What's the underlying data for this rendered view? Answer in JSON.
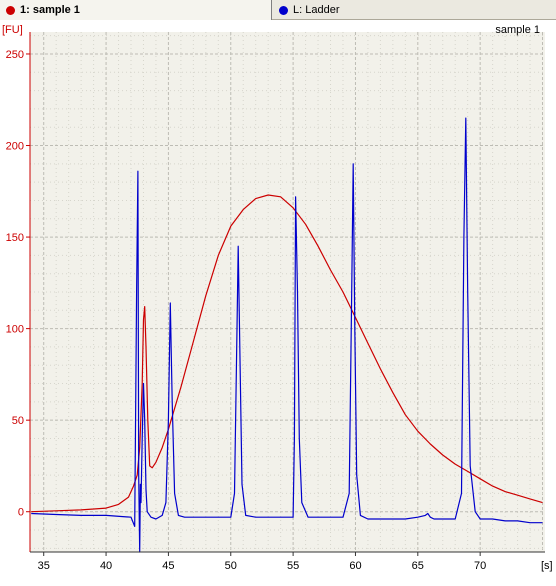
{
  "tabs": [
    {
      "label": "1: sample 1",
      "color": "#cc0000",
      "active": true
    },
    {
      "label": "L: Ladder",
      "color": "#0000cc",
      "active": false
    }
  ],
  "chart_data": {
    "type": "line",
    "title": "sample 1",
    "ylabel": "[FU]",
    "xlabel": "[s]",
    "xlim": [
      33.9,
      75.2
    ],
    "ylim": [
      -22,
      262
    ],
    "x_ticks": [
      35,
      40,
      45,
      50,
      55,
      60,
      65,
      70
    ],
    "y_ticks": [
      0,
      50,
      100,
      150,
      200,
      250
    ],
    "grid": true,
    "background": "#f2f1ea",
    "axis_color": "#cc0000",
    "series": [
      {
        "name": "1: sample 1",
        "color": "#cc0000",
        "x": [
          34,
          36,
          38,
          40,
          41,
          41.8,
          42.2,
          42.5,
          42.7,
          42.9,
          43.0,
          43.1,
          43.2,
          43.35,
          43.5,
          43.7,
          44.0,
          44.5,
          45,
          46,
          47,
          48,
          49,
          50,
          51,
          52,
          53,
          54,
          55,
          56,
          57,
          58,
          59,
          60,
          61,
          62,
          63,
          64,
          65,
          66,
          67,
          68,
          69,
          70,
          71,
          72,
          73,
          74,
          75
        ],
        "y": [
          0,
          0.5,
          1,
          2,
          4,
          8,
          14,
          20,
          35,
          70,
          105,
          112,
          90,
          50,
          25,
          24,
          27,
          35,
          45,
          68,
          93,
          118,
          140,
          156,
          165,
          171,
          173,
          172,
          166,
          157,
          145,
          132,
          120,
          106,
          92,
          78,
          65,
          53,
          44,
          37,
          31,
          26,
          22,
          18,
          14,
          11,
          9,
          7,
          5
        ]
      },
      {
        "name": "L: Ladder",
        "color": "#0000cc",
        "x": [
          34,
          36,
          38,
          40,
          42.0,
          42.3,
          42.45,
          42.55,
          42.62,
          42.7,
          42.75,
          42.8,
          42.9,
          43.0,
          43.1,
          43.2,
          43.3,
          43.6,
          44.0,
          44.5,
          44.8,
          45.0,
          45.15,
          45.3,
          45.5,
          45.8,
          46.3,
          47,
          48,
          49,
          50,
          50.3,
          50.5,
          50.6,
          50.75,
          50.9,
          51.2,
          52,
          53,
          54,
          55,
          55.1,
          55.2,
          55.35,
          55.5,
          55.7,
          56.2,
          57,
          58,
          59,
          59.5,
          59.7,
          59.82,
          59.95,
          60.1,
          60.4,
          61,
          62,
          63,
          64,
          65,
          65.6,
          65.8,
          66.0,
          66.3,
          67,
          68,
          68.5,
          68.7,
          68.85,
          69.0,
          69.2,
          69.6,
          70,
          71,
          72,
          73,
          74,
          75
        ],
        "y": [
          -1,
          -1.5,
          -2,
          -2,
          -3,
          -8,
          120,
          186,
          20,
          -22,
          15,
          5,
          40,
          70,
          50,
          12,
          0,
          -3,
          -4,
          -2,
          5,
          50,
          114,
          60,
          10,
          -2,
          -3,
          -3,
          -3,
          -3,
          -3,
          10,
          100,
          145,
          80,
          15,
          -2,
          -3,
          -3,
          -3,
          -3,
          40,
          172,
          120,
          40,
          5,
          -3,
          -3,
          -3,
          -3,
          10,
          120,
          190,
          100,
          20,
          -2,
          -4,
          -4,
          -4,
          -4,
          -3,
          -2,
          -1,
          -3,
          -4,
          -4,
          -4,
          10,
          150,
          215,
          120,
          25,
          0,
          -4,
          -4,
          -5,
          -5,
          -6,
          -6
        ]
      }
    ]
  }
}
